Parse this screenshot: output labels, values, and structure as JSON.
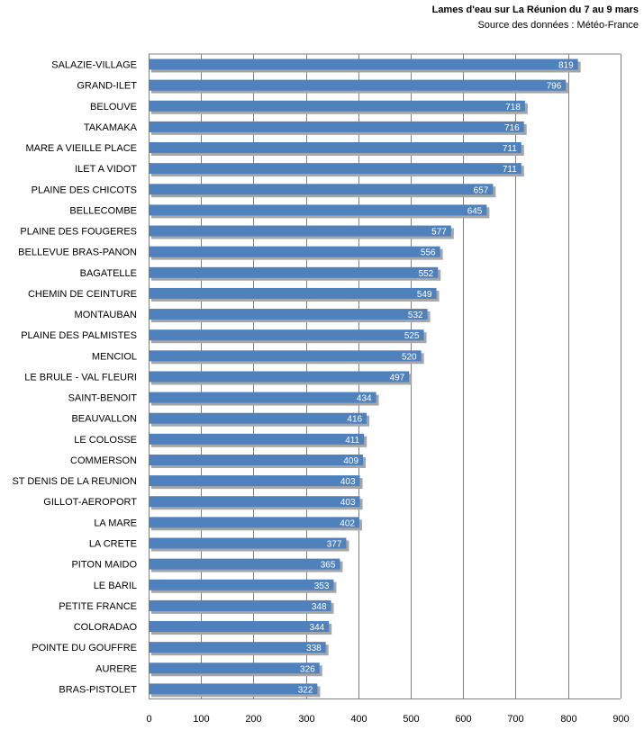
{
  "chart_data": {
    "type": "bar",
    "orientation": "horizontal",
    "title": "Lames d'eau sur La Réunion du 7 au 9 mars",
    "subtitle": "Source des données : Météo-France",
    "categories": [
      "SALAZIE-VILLAGE",
      "GRAND-ILET",
      "BELOUVE",
      "TAKAMAKA",
      "MARE A VIEILLE PLACE",
      "ILET A VIDOT",
      "PLAINE DES CHICOTS",
      "BELLECOMBE",
      "PLAINE DES FOUGERES",
      "BELLEVUE BRAS-PANON",
      "BAGATELLE",
      "CHEMIN DE CEINTURE",
      "MONTAUBAN",
      "PLAINE DES PALMISTES",
      "MENCIOL",
      "LE BRULE - VAL FLEURI",
      "SAINT-BENOIT",
      "BEAUVALLON",
      "LE COLOSSE",
      "COMMERSON",
      "ST DENIS DE LA REUNION",
      "GILLOT-AEROPORT",
      "LA MARE",
      "LA CRETE",
      "PITON MAIDO",
      "LE BARIL",
      "PETITE FRANCE",
      "COLORADAO",
      "POINTE DU GOUFFRE",
      "AURERE",
      "BRAS-PISTOLET"
    ],
    "values": [
      819,
      796,
      718,
      716,
      711,
      711,
      657,
      645,
      577,
      556,
      552,
      549,
      532,
      525,
      520,
      497,
      434,
      416,
      411,
      409,
      403,
      403,
      402,
      377,
      365,
      353,
      348,
      344,
      338,
      326,
      322
    ],
    "xlim": [
      0,
      900
    ],
    "xticks": [
      0,
      100,
      200,
      300,
      400,
      500,
      600,
      700,
      800,
      900
    ],
    "grid": "vertical",
    "colors": {
      "bar": "#4F81BD",
      "shadow": "#a6a6a6",
      "grid": "#808080",
      "value_text": "#ffffff"
    }
  }
}
